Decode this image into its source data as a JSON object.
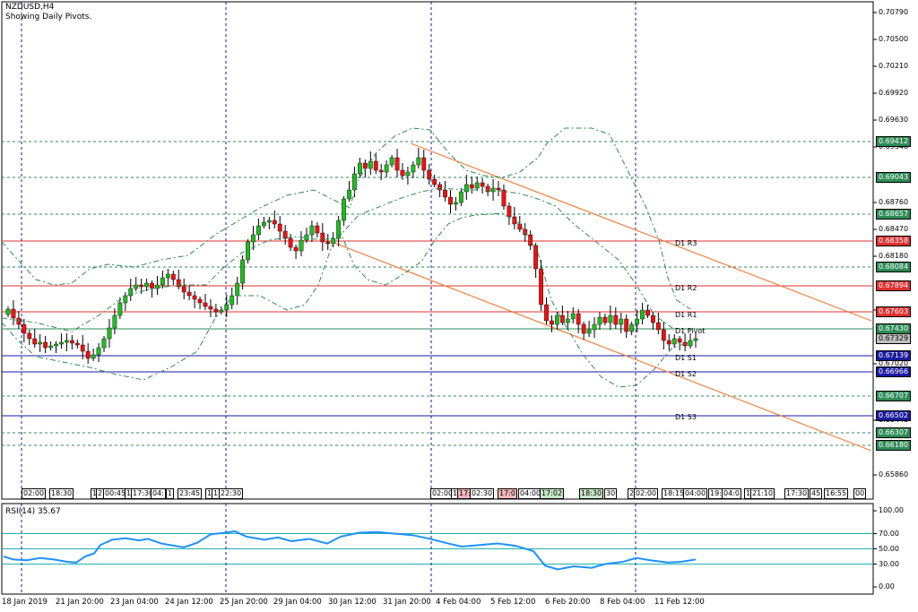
{
  "chart": {
    "symbol": "NZDUSD,H4",
    "indicator_note": "Showing Daily Pivots."
  },
  "price_axis": [
    "0.70790",
    "0.70500",
    "0.70210",
    "0.69920",
    "0.69630",
    "0.69340",
    "0.68760",
    "0.68470",
    "0.68180",
    "0.67600",
    "0.67020",
    "0.66440",
    "0.65860"
  ],
  "price_tags": [
    {
      "text": "0.69412",
      "color": "#2e8b57"
    },
    {
      "text": "0.69043",
      "color": "#2e8b57"
    },
    {
      "text": "0.68657",
      "color": "#2e8b57"
    },
    {
      "text": "0.68358",
      "color": "#e03030"
    },
    {
      "text": "0.68084",
      "color": "#2e8b57"
    },
    {
      "text": "0.67894",
      "color": "#e03030"
    },
    {
      "text": "0.67603",
      "color": "#e03030"
    },
    {
      "text": "0.67430",
      "color": "#2e8b57"
    },
    {
      "text": "0.67329",
      "color": "#c0c0c0"
    },
    {
      "text": "0.67139",
      "color": "#1a1aa0"
    },
    {
      "text": "0.66966",
      "color": "#1a1aa0"
    },
    {
      "text": "0.66707",
      "color": "#2e8b57"
    },
    {
      "text": "0.66502",
      "color": "#1a1aa0"
    },
    {
      "text": "0.66307",
      "color": "#2e8b57"
    },
    {
      "text": "0.66180",
      "color": "#2e8b57"
    }
  ],
  "pivots": [
    {
      "label": "D1 R3"
    },
    {
      "label": "D1 R2"
    },
    {
      "label": "D1 R1"
    },
    {
      "label": "D1 Pivot"
    },
    {
      "label": "D1 S1"
    },
    {
      "label": "D1 S2"
    },
    {
      "label": "D1 S3"
    }
  ],
  "time_boxes": [
    "02:00",
    "18:30",
    "1",
    "2",
    "00:45",
    "1",
    "17:30",
    "04:",
    "1",
    "23:45",
    "1",
    "1",
    "22:30",
    "02:00",
    "1",
    "17:",
    "02:30",
    "17:0",
    "04:00",
    "17:02",
    "18:30",
    "30",
    "2",
    "02:00",
    "18:15",
    "04:00",
    "19:",
    "04:0",
    "1",
    "21:10",
    "17:30",
    "45",
    "16:55",
    "00"
  ],
  "rsi": {
    "title": "RSI(14) 35.67",
    "axis": [
      "100.00",
      "70.00",
      "50.00",
      "30.00",
      "0.00"
    ]
  },
  "dates": [
    "18 Jan 2019",
    "21 Jan 20:00",
    "23 Jan 04:00",
    "24 Jan 12:00",
    "25 Jan 20:00",
    "29 Jan 04:00",
    "30 Jan 12:00",
    "31 Jan 20:00",
    "4 Feb 04:00",
    "5 Feb 12:00",
    "6 Feb 20:00",
    "8 Feb 04:00",
    "11 Feb 12:00"
  ],
  "colors": {
    "bull": "#22bb22",
    "bear": "#ee1111",
    "resistance": "#e03030",
    "support": "#1a1aa0",
    "pivot": "#2e8b57",
    "bands": "#2e8b57",
    "channel": "#f08040",
    "rsi_line": "#1e90ff",
    "rsi_levels": "#20b2aa",
    "period_sep": "#1a1aa0"
  }
}
